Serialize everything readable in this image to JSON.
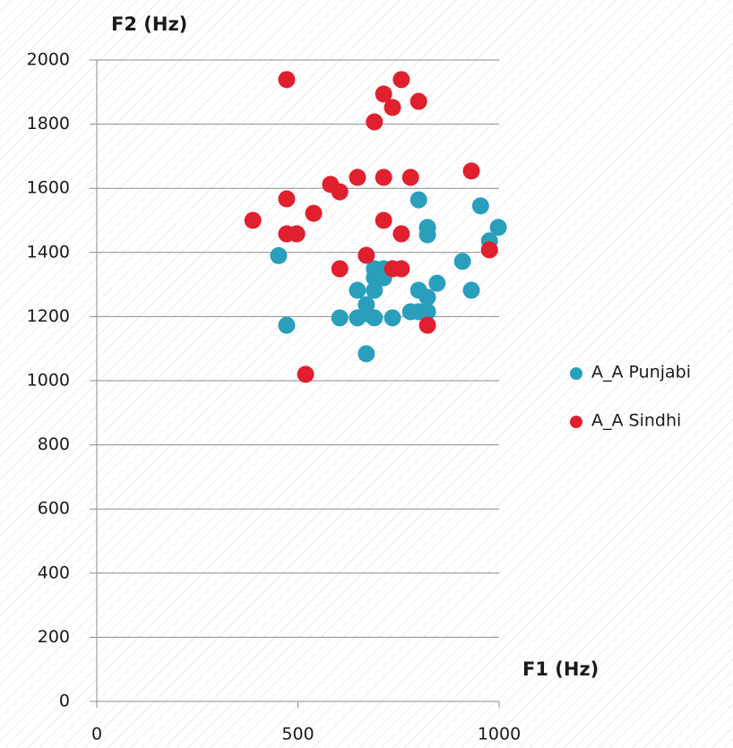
{
  "chart_data": {
    "type": "scatter",
    "y_axis_label": "F2 (Hz)",
    "x_axis_label": "F1 (Hz)",
    "xlim": [
      0,
      1000
    ],
    "ylim": [
      0,
      2000
    ],
    "xticks": [
      0,
      500,
      1000
    ],
    "yticks": [
      0,
      200,
      400,
      600,
      800,
      1000,
      1200,
      1400,
      1600,
      1800,
      2000
    ],
    "grid": true,
    "legend": "right",
    "series": [
      {
        "name": "A_A Punjabi",
        "color": "#2a9fbc",
        "x": [
          452,
          472,
          604,
          648,
          648,
          670,
          670,
          670,
          690,
          690,
          690,
          690,
          713,
          713,
          735,
          780,
          800,
          800,
          800,
          822,
          822,
          822,
          822,
          846,
          909,
          931,
          954,
          976,
          998
        ],
        "values": [
          1390,
          1173,
          1196,
          1282,
          1196,
          1237,
          1209,
          1084,
          1349,
          1321,
          1282,
          1196,
          1349,
          1321,
          1196,
          1215,
          1564,
          1282,
          1215,
          1478,
          1455,
          1260,
          1215,
          1304,
          1372,
          1282,
          1545,
          1436,
          1478
        ]
      },
      {
        "name": "A_A Sindhi",
        "color": "#e0202e",
        "x": [
          472,
          388,
          472,
          472,
          497,
          539,
          519,
          581,
          604,
          604,
          648,
          670,
          690,
          713,
          713,
          713,
          735,
          735,
          757,
          757,
          757,
          780,
          800,
          822,
          931,
          976
        ],
        "values": [
          1939,
          1500,
          1567,
          1458,
          1458,
          1522,
          1020,
          1612,
          1589,
          1349,
          1634,
          1391,
          1807,
          1894,
          1634,
          1500,
          1852,
          1349,
          1939,
          1458,
          1349,
          1634,
          1871,
          1173,
          1654,
          1408
        ]
      }
    ]
  }
}
